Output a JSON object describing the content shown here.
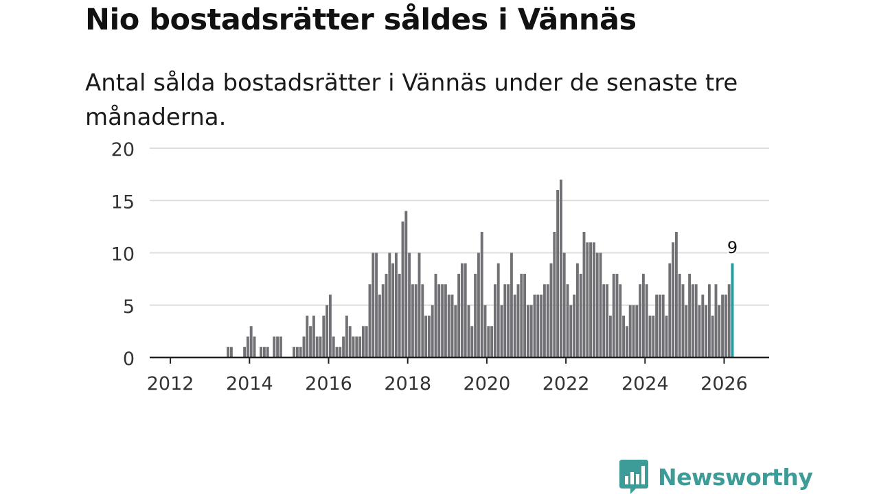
{
  "header": {
    "title": "Nio bostadsrätter såldes i Vännäs",
    "subtitle": "Antal sålda bostadsrätter i Vännäs under de senaste tre månaderna."
  },
  "branding": {
    "name": "Newsworthy",
    "logo_icon": "bar-chart-speech-icon"
  },
  "colors": {
    "bar": "#707075",
    "highlight": "#1a9e9e",
    "grid": "#dddddd",
    "axis": "#222222",
    "brand": "#3d9c98"
  },
  "chart_data": {
    "type": "bar",
    "title": "Nio bostadsrätter såldes i Vännäs",
    "xlabel": "",
    "ylabel": "",
    "ylim": [
      0,
      20
    ],
    "yticks": [
      0,
      5,
      10,
      15,
      20
    ],
    "xticks": [
      "2012",
      "2014",
      "2016",
      "2018",
      "2020",
      "2022",
      "2024",
      "2026"
    ],
    "start": "2011-08",
    "end": "2026-03",
    "highlight_label": "9",
    "values": [
      0,
      0,
      0,
      0,
      0,
      0,
      0,
      0,
      0,
      0,
      0,
      0,
      0,
      0,
      0,
      0,
      0,
      0,
      0,
      0,
      0,
      0,
      1,
      1,
      0,
      0,
      0,
      1,
      2,
      3,
      2,
      0,
      1,
      1,
      1,
      0,
      2,
      2,
      2,
      0,
      0,
      0,
      1,
      1,
      1,
      2,
      4,
      3,
      4,
      2,
      2,
      4,
      5,
      6,
      2,
      1,
      1,
      2,
      4,
      3,
      2,
      2,
      2,
      3,
      3,
      7,
      10,
      10,
      6,
      7,
      8,
      10,
      9,
      10,
      8,
      13,
      14,
      10,
      7,
      7,
      10,
      7,
      4,
      4,
      5,
      8,
      7,
      7,
      7,
      6,
      6,
      5,
      8,
      9,
      9,
      5,
      3,
      8,
      10,
      12,
      5,
      3,
      3,
      7,
      9,
      5,
      7,
      7,
      10,
      6,
      7,
      8,
      8,
      5,
      5,
      6,
      6,
      6,
      7,
      7,
      9,
      12,
      16,
      17,
      10,
      7,
      5,
      6,
      9,
      8,
      12,
      11,
      11,
      11,
      10,
      10,
      7,
      7,
      4,
      8,
      8,
      7,
      4,
      3,
      5,
      5,
      5,
      7,
      8,
      7,
      4,
      4,
      6,
      6,
      6,
      4,
      9,
      11,
      12,
      8,
      7,
      5,
      8,
      7,
      7,
      5,
      6,
      5,
      7,
      4,
      7,
      5,
      6,
      6,
      7,
      9
    ]
  }
}
